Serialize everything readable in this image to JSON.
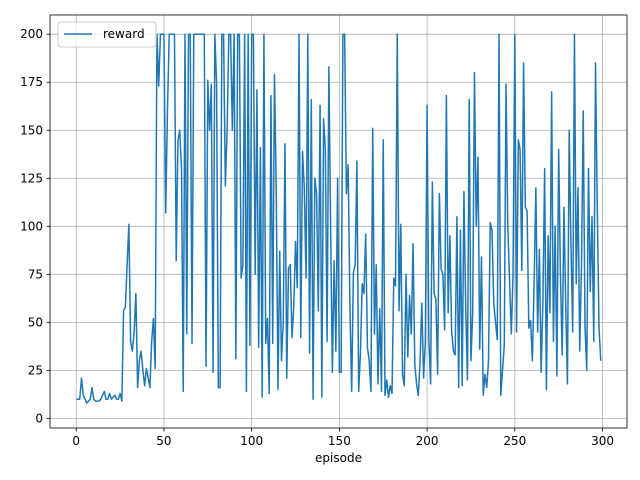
{
  "chart_data": {
    "type": "line",
    "xlabel": "episode",
    "xlim": [
      -14.95,
      313.95
    ],
    "ylim": [
      -5,
      210
    ],
    "xticks": [
      0,
      50,
      100,
      150,
      200,
      250,
      300
    ],
    "yticks": [
      0,
      25,
      50,
      75,
      100,
      125,
      150,
      175,
      200
    ],
    "grid": true,
    "legend": "upper left",
    "series": [
      {
        "name": "reward",
        "color": "#1f77b4",
        "values": [
          10,
          10,
          10,
          21,
          12,
          10,
          8,
          9,
          10,
          16,
          10,
          9,
          9,
          9,
          10,
          12,
          14,
          10,
          10,
          13,
          10,
          11,
          12,
          10,
          10,
          13,
          9,
          56,
          58,
          80,
          101,
          40,
          35,
          45,
          65,
          16,
          30,
          35,
          25,
          17,
          26,
          21,
          16,
          40,
          52,
          26,
          200,
          173,
          200,
          200,
          200,
          107,
          160,
          200,
          200,
          200,
          200,
          82,
          145,
          150,
          130,
          14,
          200,
          44,
          200,
          200,
          39,
          200,
          200,
          200,
          200,
          200,
          200,
          200,
          27,
          176,
          150,
          174,
          24,
          200,
          175,
          16,
          16,
          200,
          200,
          121,
          150,
          200,
          200,
          150,
          200,
          31,
          200,
          200,
          73,
          80,
          200,
          14,
          200,
          38,
          200,
          200,
          75,
          171,
          37,
          141,
          11,
          200,
          39,
          52,
          13,
          168,
          39,
          179,
          120,
          15,
          87,
          30,
          50,
          143,
          21,
          78,
          80,
          42,
          58,
          92,
          68,
          200,
          42,
          139,
          120,
          73,
          200,
          34,
          166,
          10,
          125,
          117,
          56,
          163,
          11,
          156,
          140,
          40,
          183,
          100,
          24,
          82,
          35,
          125,
          24,
          24,
          200,
          200,
          117,
          132,
          59,
          14,
          76,
          80,
          134,
          14,
          34,
          70,
          65,
          96,
          37,
          30,
          14,
          151,
          44,
          80,
          18,
          57,
          14,
          145,
          12,
          20,
          11,
          17,
          13,
          73,
          69,
          200,
          56,
          101,
          23,
          17,
          75,
          32,
          64,
          44,
          91,
          28,
          18,
          12,
          30,
          60,
          21,
          40,
          163,
          41,
          18,
          123,
          65,
          62,
          23,
          117,
          78,
          75,
          46,
          168,
          55,
          95,
          45,
          35,
          33,
          105,
          16,
          98,
          17,
          118,
          58,
          20,
          166,
          30,
          55,
          180,
          100,
          136,
          36,
          84,
          12,
          23,
          16,
          30,
          102,
          98,
          60,
          50,
          41,
          200,
          12,
          25,
          38,
          174,
          100,
          72,
          44,
          76,
          200,
          45,
          145,
          140,
          77,
          185,
          110,
          108,
          47,
          51,
          30,
          70,
          120,
          45,
          88,
          24,
          60,
          130,
          15,
          95,
          55,
          170,
          40,
          100,
          22,
          140,
          75,
          33,
          110,
          60,
          18,
          150,
          90,
          45,
          200,
          70,
          120,
          35,
          80,
          160,
          48,
          25,
          130,
          66,
          105,
          40,
          185,
          110,
          47,
          30
        ]
      }
    ]
  }
}
